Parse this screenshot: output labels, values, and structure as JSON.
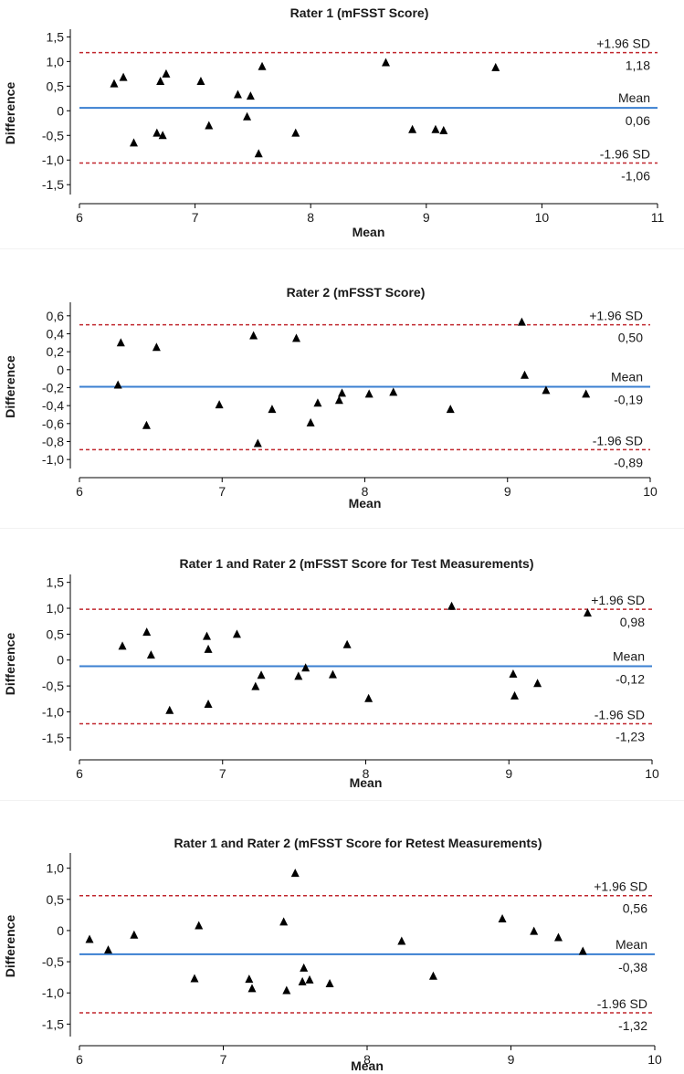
{
  "colors": {
    "mean_line": "#3a7fd1",
    "limit_line": "#c0262d",
    "marker": "#000000",
    "axis": "#000000"
  },
  "chart_data": [
    {
      "type": "scatter",
      "title": "Rater 1 (mFSST Score)",
      "xlabel": "Mean",
      "ylabel": "Difference",
      "xlim": [
        6,
        11
      ],
      "ylim": [
        -1.7,
        1.6
      ],
      "xticks": [
        6,
        7,
        8,
        9,
        10,
        11
      ],
      "xtick_labels": [
        "6",
        "7",
        "8",
        "9",
        "10",
        "11"
      ],
      "yticks": [
        1.5,
        1.0,
        0.5,
        0,
        -0.5,
        -1.0,
        -1.5
      ],
      "ytick_labels": [
        "1,5",
        "1,0",
        "0,5",
        "0",
        "-0,5",
        "-1,0",
        "-1,5"
      ],
      "mean": 0.06,
      "upper_loa": 1.18,
      "lower_loa": -1.06,
      "mean_caption": "Mean",
      "mean_value_label": "0,06",
      "upper_caption": "+1.96 SD",
      "upper_value_label": "1,18",
      "lower_caption": "-1.96 SD",
      "lower_value_label": "-1,06",
      "points": [
        [
          6.3,
          0.55
        ],
        [
          6.38,
          0.68
        ],
        [
          6.47,
          -0.65
        ],
        [
          6.67,
          -0.45
        ],
        [
          6.7,
          0.6
        ],
        [
          6.72,
          -0.5
        ],
        [
          6.75,
          0.75
        ],
        [
          7.05,
          0.6
        ],
        [
          7.12,
          -0.3
        ],
        [
          7.37,
          0.33
        ],
        [
          7.45,
          -0.12
        ],
        [
          7.48,
          0.3
        ],
        [
          7.55,
          -0.87
        ],
        [
          7.58,
          0.9
        ],
        [
          7.87,
          -0.45
        ],
        [
          8.65,
          0.98
        ],
        [
          8.88,
          -0.38
        ],
        [
          9.08,
          -0.38
        ],
        [
          9.15,
          -0.4
        ],
        [
          9.6,
          0.88
        ]
      ]
    },
    {
      "type": "scatter",
      "title": "Rater 2 (mFSST Score)",
      "xlabel": "Mean",
      "ylabel": "Difference",
      "xlim": [
        6,
        10
      ],
      "ylim": [
        -1.1,
        0.72
      ],
      "xticks": [
        6,
        7,
        8,
        9,
        10
      ],
      "xtick_labels": [
        "6",
        "7",
        "8",
        "9",
        "10"
      ],
      "yticks": [
        0.6,
        0.4,
        0.2,
        0,
        -0.2,
        -0.4,
        -0.6,
        -0.8,
        -1.0
      ],
      "ytick_labels": [
        "0,6",
        "0,4",
        "0,2",
        "0",
        "-0,2",
        "-0,4",
        "-0,6",
        "-0,8",
        "-1,0"
      ],
      "mean": -0.19,
      "upper_loa": 0.5,
      "lower_loa": -0.89,
      "mean_caption": "Mean",
      "mean_value_label": "-0,19",
      "upper_caption": "+1.96 SD",
      "upper_value_label": "0,50",
      "lower_caption": "-1.96 SD",
      "lower_value_label": "-0,89",
      "points": [
        [
          6.27,
          -0.17
        ],
        [
          6.29,
          0.3
        ],
        [
          6.47,
          -0.62
        ],
        [
          6.54,
          0.25
        ],
        [
          6.98,
          -0.39
        ],
        [
          7.22,
          0.38
        ],
        [
          7.25,
          -0.82
        ],
        [
          7.35,
          -0.44
        ],
        [
          7.52,
          0.35
        ],
        [
          7.62,
          -0.59
        ],
        [
          7.67,
          -0.37
        ],
        [
          7.82,
          -0.34
        ],
        [
          7.84,
          -0.26
        ],
        [
          8.03,
          -0.27
        ],
        [
          8.2,
          -0.25
        ],
        [
          8.6,
          -0.44
        ],
        [
          9.1,
          0.53
        ],
        [
          9.12,
          -0.06
        ],
        [
          9.27,
          -0.23
        ],
        [
          9.55,
          -0.27
        ]
      ]
    },
    {
      "type": "scatter",
      "title": "Rater 1 and Rater 2 (mFSST Score for Test Measurements)",
      "xlabel": "Mean",
      "ylabel": "Difference",
      "xlim": [
        6,
        10
      ],
      "ylim": [
        -1.75,
        1.6
      ],
      "xticks": [
        6,
        7,
        8,
        9,
        10
      ],
      "xtick_labels": [
        "6",
        "7",
        "8",
        "9",
        "10"
      ],
      "yticks": [
        1.5,
        1.0,
        0.5,
        0,
        -0.5,
        -1.0,
        -1.5
      ],
      "ytick_labels": [
        "1,5",
        "1,0",
        "0,5",
        "0",
        "-0,5",
        "-1,0",
        "-1,5"
      ],
      "mean": -0.12,
      "upper_loa": 0.98,
      "lower_loa": -1.23,
      "mean_caption": "Mean",
      "mean_value_label": "-0,12",
      "upper_caption": "+1.96 SD",
      "upper_value_label": "0,98",
      "lower_caption": "-1.96 SD",
      "lower_value_label": "-1,23",
      "points": [
        [
          6.3,
          0.27
        ],
        [
          6.47,
          0.54
        ],
        [
          6.5,
          0.1
        ],
        [
          6.63,
          -0.97
        ],
        [
          6.89,
          0.46
        ],
        [
          6.9,
          0.21
        ],
        [
          6.9,
          -0.85
        ],
        [
          7.1,
          0.5
        ],
        [
          7.23,
          -0.51
        ],
        [
          7.27,
          -0.29
        ],
        [
          7.53,
          -0.31
        ],
        [
          7.58,
          -0.15
        ],
        [
          7.77,
          -0.28
        ],
        [
          7.87,
          0.3
        ],
        [
          8.02,
          -0.74
        ],
        [
          8.6,
          1.04
        ],
        [
          9.03,
          -0.27
        ],
        [
          9.04,
          -0.69
        ],
        [
          9.2,
          -0.45
        ],
        [
          9.55,
          0.91
        ]
      ]
    },
    {
      "type": "scatter",
      "title": "Rater 1 and Rater 2 (mFSST Score for Retest Measurements)",
      "xlabel": "Mean",
      "ylabel": "Difference",
      "xlim": [
        6,
        10
      ],
      "ylim": [
        -1.7,
        1.2
      ],
      "xticks": [
        6,
        7,
        8,
        9,
        10
      ],
      "xtick_labels": [
        "6",
        "7",
        "8",
        "9",
        "10"
      ],
      "yticks": [
        1.0,
        0.5,
        0,
        -0.5,
        -1.0,
        -1.5
      ],
      "ytick_labels": [
        "1,0",
        "0,5",
        "0",
        "-0,5",
        "-1,0",
        "-1,5"
      ],
      "mean": -0.38,
      "upper_loa": 0.56,
      "lower_loa": -1.32,
      "mean_caption": "Mean",
      "mean_value_label": "-0,38",
      "upper_caption": "+1.96 SD",
      "upper_value_label": "0,56",
      "lower_caption": "-1.96 SD",
      "lower_value_label": "-1,32",
      "points": [
        [
          6.07,
          -0.14
        ],
        [
          6.2,
          -0.31
        ],
        [
          6.38,
          -0.07
        ],
        [
          6.8,
          -0.77
        ],
        [
          6.83,
          0.08
        ],
        [
          7.18,
          -0.78
        ],
        [
          7.2,
          -0.93
        ],
        [
          7.42,
          0.14
        ],
        [
          7.44,
          -0.96
        ],
        [
          7.5,
          0.92
        ],
        [
          7.55,
          -0.82
        ],
        [
          7.56,
          -0.6
        ],
        [
          7.6,
          -0.79
        ],
        [
          7.74,
          -0.85
        ],
        [
          8.24,
          -0.17
        ],
        [
          8.46,
          -0.73
        ],
        [
          8.94,
          0.19
        ],
        [
          9.16,
          -0.01
        ],
        [
          9.33,
          -0.11
        ],
        [
          9.5,
          -0.33
        ]
      ]
    }
  ]
}
